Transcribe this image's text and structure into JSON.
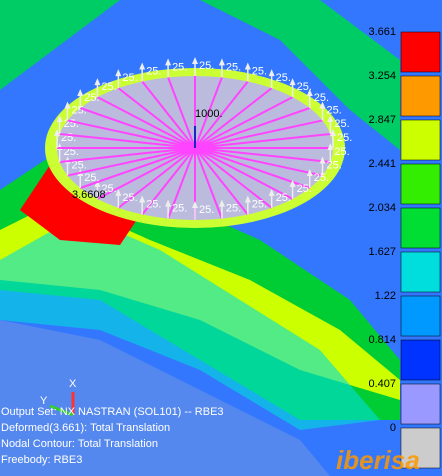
{
  "legend": {
    "levels": [
      "3.661",
      "3.254",
      "2.847",
      "2.441",
      "2.034",
      "1.627",
      "1.22",
      "0.814",
      "0.407",
      "0"
    ],
    "colors": [
      "#ff0000",
      "#ff9900",
      "#ccff00",
      "#33ee00",
      "#00dd33",
      "#00dddd",
      "#0099ff",
      "#0033ff",
      "#9999ff",
      "#cccccc"
    ]
  },
  "model": {
    "force_labels": [
      "25.",
      "25.",
      "25.",
      "25.",
      "25.",
      "25.",
      "25.",
      "25.",
      "25.",
      "25.",
      "25.",
      "25.",
      "25.",
      "25.",
      "25.",
      "25.",
      "25.",
      "25.",
      "25.",
      "25.",
      "25.",
      "25.",
      "25.",
      "25.",
      "25.",
      "25.",
      "25.",
      "25.",
      "25.",
      "25.",
      "25.",
      "25."
    ],
    "center_force": "1000.",
    "max_label": "3.6608"
  },
  "axes": {
    "x": "X",
    "y": "Y"
  },
  "info": [
    "Output Set: NX NASTRAN (SOL101) -- RBE3",
    "Deformed(3.661): Total Translation",
    "Nodal Contour: Total Translation",
    "Freebody: RBE3"
  ],
  "watermark": "iberisa"
}
